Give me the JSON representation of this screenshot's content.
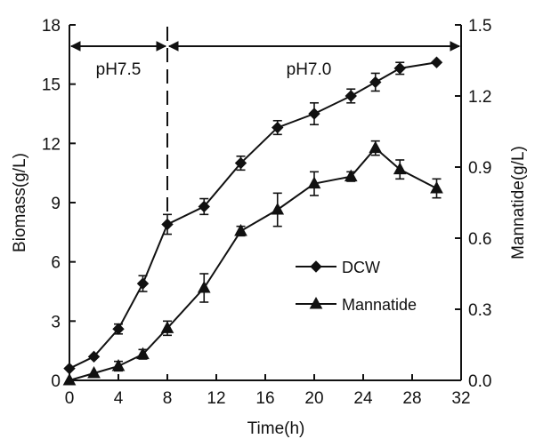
{
  "chart_data": {
    "type": "line",
    "xlabel": "Time(h)",
    "ylabel_left": "Biomass(g/L)",
    "ylabel_right": "Mannatide(g/L)",
    "xlim": [
      0,
      32
    ],
    "xticks": [
      0,
      4,
      8,
      12,
      16,
      20,
      24,
      28,
      32
    ],
    "ylim_left": [
      0,
      18
    ],
    "yticks_left": [
      0,
      3,
      6,
      9,
      12,
      15,
      18
    ],
    "ylim_right": [
      0,
      1.5
    ],
    "yticks_right": [
      "0.0",
      "0.3",
      "0.6",
      "0.9",
      "1.2",
      "1.5"
    ],
    "grid": false,
    "legend_position": "center-right",
    "phases": [
      {
        "label": "pH7.5",
        "x_start": 0,
        "x_end": 8
      },
      {
        "label": "pH7.0",
        "x_start": 8,
        "x_end": 32
      }
    ],
    "series": [
      {
        "name": "DCW",
        "axis": "left",
        "marker": "diamond",
        "x": [
          0,
          2,
          4,
          6,
          8,
          11,
          14,
          17,
          20,
          23,
          25,
          27,
          30
        ],
        "y": [
          0.6,
          1.2,
          2.6,
          4.9,
          7.9,
          8.8,
          11.0,
          12.8,
          13.5,
          14.4,
          15.1,
          15.8,
          16.1
        ],
        "err": [
          0,
          0,
          0.25,
          0.4,
          0.5,
          0.4,
          0.35,
          0.35,
          0.55,
          0.35,
          0.45,
          0.3,
          0
        ]
      },
      {
        "name": "Mannatide",
        "axis": "right",
        "marker": "triangle",
        "x": [
          0,
          2,
          4,
          6,
          8,
          11,
          14,
          17,
          20,
          23,
          25,
          27,
          30
        ],
        "y": [
          0.0,
          0.03,
          0.06,
          0.11,
          0.22,
          0.39,
          0.63,
          0.72,
          0.83,
          0.86,
          0.98,
          0.89,
          0.81
        ],
        "err": [
          0,
          0,
          0.02,
          0.02,
          0.03,
          0.06,
          0.02,
          0.07,
          0.05,
          0.02,
          0.03,
          0.04,
          0.04
        ]
      }
    ]
  }
}
